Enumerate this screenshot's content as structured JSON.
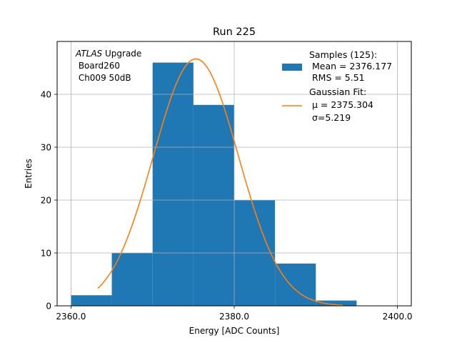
{
  "chart_data": {
    "type": "bar",
    "title": "Run 225",
    "xlabel": "Energy [ADC Counts]",
    "ylabel": "Entries",
    "xlim": [
      2358.3,
      2401.7
    ],
    "ylim": [
      0,
      50
    ],
    "grid": true,
    "xticks": [
      2360,
      2380,
      2400
    ],
    "xtick_labels": [
      "2360.0",
      "2380.0",
      "2400.0"
    ],
    "yticks": [
      0,
      10,
      20,
      30,
      40
    ],
    "ytick_labels": [
      "0",
      "10",
      "20",
      "30",
      "40"
    ],
    "histogram": {
      "color": "#1f77b4",
      "bins": [
        {
          "x0": 2360,
          "x1": 2365,
          "count": 2
        },
        {
          "x0": 2365,
          "x1": 2370,
          "count": 10
        },
        {
          "x0": 2370,
          "x1": 2375,
          "count": 46
        },
        {
          "x0": 2375,
          "x1": 2380,
          "count": 38
        },
        {
          "x0": 2380,
          "x1": 2385,
          "count": 20
        },
        {
          "x0": 2385,
          "x1": 2390,
          "count": 8
        },
        {
          "x0": 2390,
          "x1": 2395,
          "count": 1
        }
      ]
    },
    "fit": {
      "type": "gaussian",
      "color": "#ff7f0e",
      "mu": 2375.304,
      "sigma": 5.219,
      "amplitude": 46.7,
      "x_range": [
        2363.3,
        2393.3
      ]
    },
    "annotation": {
      "italic": "ATLAS",
      "lines": [
        " Upgrade",
        " Board260",
        " Ch009 50dB"
      ]
    },
    "legend": {
      "placement": "top-right",
      "entries": [
        {
          "kind": "patch",
          "color": "#1f77b4",
          "lines": [
            "Samples (125):",
            " Mean = 2376.177",
            " RMS = 5.51"
          ]
        },
        {
          "kind": "line",
          "color": "#ff7f0e",
          "lines": [
            "Gaussian Fit:",
            " μ = 2375.304",
            " σ=5.219"
          ]
        }
      ]
    }
  }
}
